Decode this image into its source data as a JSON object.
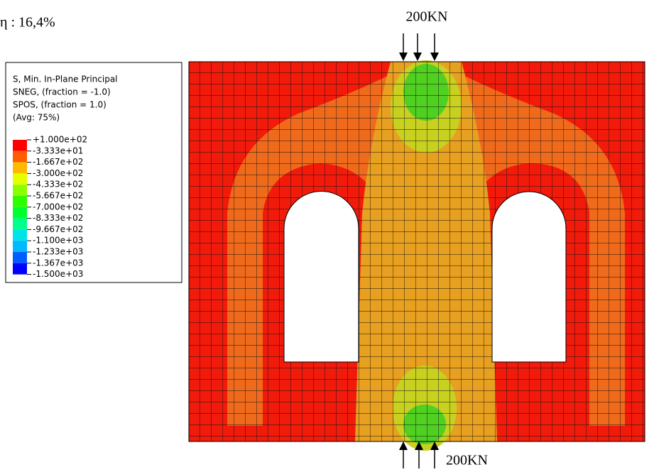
{
  "efficiency": "η : 16,4%",
  "legend": {
    "title": [
      "S, Min. In-Plane Principal",
      "SNEG, (fraction = -1.0)",
      "SPOS, (fraction = 1.0)",
      "(Avg: 75%)"
    ],
    "labels": [
      "+1.000e+02",
      "-3.333e+01",
      "-1.667e+02",
      "-3.000e+02",
      "-4.333e+02",
      "-5.667e+02",
      "-7.000e+02",
      "-8.333e+02",
      "-9.667e+02",
      "-1.100e+03",
      "-1.233e+03",
      "-1.367e+03",
      "-1.500e+03"
    ],
    "colors": [
      "#ff0000",
      "#ff5d00",
      "#ffb900",
      "#e3ff00",
      "#8bff00",
      "#2eff00",
      "#00ff2e",
      "#00ff8b",
      "#00e3e8",
      "#00b9ff",
      "#005dff",
      "#0000ff"
    ]
  },
  "load_top": "200KN",
  "load_bottom": "200KN"
}
